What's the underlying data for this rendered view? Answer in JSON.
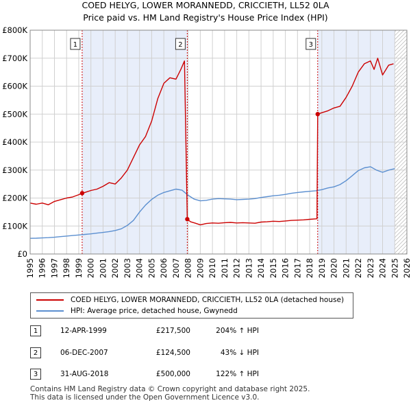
{
  "title_line1": "COED HELYG, LOWER MORANNEDD, CRICCIETH, LL52 0LA",
  "title_line2": "Price paid vs. HM Land Registry's House Price Index (HPI)",
  "legend": {
    "series1": "COED HELYG, LOWER MORANNEDD, CRICCIETH, LL52 0LA (detached house)",
    "series2": "HPI: Average price, detached house, Gwynedd"
  },
  "transactions": [
    {
      "num": "1",
      "date": "12-APR-1999",
      "price": "£217,500",
      "hpi": "204% ↑ HPI"
    },
    {
      "num": "2",
      "date": "06-DEC-2007",
      "price": "£124,500",
      "hpi": "43% ↓ HPI"
    },
    {
      "num": "3",
      "date": "31-AUG-2018",
      "price": "£500,000",
      "hpi": "122% ↑ HPI"
    }
  ],
  "footer_line1": "Contains HM Land Registry data © Crown copyright and database right 2025.",
  "footer_line2": "This data is licensed under the Open Government Licence v3.0.",
  "colors": {
    "price_line": "#cc0000",
    "hpi_line": "#5b8fd0",
    "shade": "#e8eefa",
    "marker_line": "#cc0000"
  },
  "chart_data": {
    "type": "line",
    "title": "COED HELYG, LOWER MORANNEDD, CRICCIETH, LL52 0LA",
    "subtitle": "Price paid vs. HM Land Registry's House Price Index (HPI)",
    "xlabel": "",
    "ylabel": "",
    "xlim": [
      1995,
      2026
    ],
    "ylim": [
      0,
      800000
    ],
    "y_ticks": [
      0,
      100000,
      200000,
      300000,
      400000,
      500000,
      600000,
      700000,
      800000
    ],
    "y_tick_labels": [
      "£0",
      "£100K",
      "£200K",
      "£300K",
      "£400K",
      "£500K",
      "£600K",
      "£700K",
      "£800K"
    ],
    "x_ticks": [
      1995,
      1996,
      1997,
      1998,
      1999,
      2000,
      2001,
      2002,
      2003,
      2004,
      2005,
      2006,
      2007,
      2008,
      2009,
      2010,
      2011,
      2012,
      2013,
      2014,
      2015,
      2016,
      2017,
      2018,
      2019,
      2020,
      2021,
      2022,
      2023,
      2024,
      2025,
      2026
    ],
    "x_tick_labels": [
      "1995",
      "1996",
      "1997",
      "1998",
      "1999",
      "2000",
      "2001",
      "2002",
      "2003",
      "2004",
      "2005",
      "2006",
      "2007",
      "2008",
      "2009",
      "2010",
      "2011",
      "2012",
      "2013",
      "2014",
      "2015",
      "2016",
      "2017",
      "2018",
      "2019",
      "2020",
      "2021",
      "2022",
      "2023",
      "2024",
      "2025",
      "2026"
    ],
    "grid": true,
    "legend_position": "below",
    "shaded_ranges": [
      [
        1999.28,
        2007.93
      ],
      [
        2018.66,
        2025.0
      ]
    ],
    "hatched_after": 2025.0,
    "events": [
      {
        "label": "1",
        "x": 1999.28,
        "y": 217500
      },
      {
        "label": "2",
        "x": 2007.93,
        "y": 124500
      },
      {
        "label": "3",
        "x": 2018.66,
        "y": 500000
      }
    ],
    "series": [
      {
        "name": "COED HELYG, LOWER MORANNEDD, CRICCIETH, LL52 0LA (detached house)",
        "x": [
          1995.0,
          1995.5,
          1996.0,
          1996.5,
          1997.0,
          1997.5,
          1998.0,
          1998.5,
          1999.0,
          1999.28,
          1999.5,
          2000.0,
          2000.5,
          2001.0,
          2001.5,
          2002.0,
          2002.5,
          2003.0,
          2003.5,
          2004.0,
          2004.5,
          2005.0,
          2005.5,
          2006.0,
          2006.5,
          2007.0,
          2007.4,
          2007.7,
          2007.93,
          2008.2,
          2008.6,
          2009.0,
          2009.5,
          2010.0,
          2010.5,
          2011.0,
          2011.5,
          2012.0,
          2012.5,
          2013.0,
          2013.5,
          2014.0,
          2014.5,
          2015.0,
          2015.5,
          2016.0,
          2016.5,
          2017.0,
          2017.5,
          2018.0,
          2018.6,
          2018.66,
          2019.0,
          2019.5,
          2020.0,
          2020.5,
          2021.0,
          2021.5,
          2022.0,
          2022.5,
          2023.0,
          2023.3,
          2023.6,
          2024.0,
          2024.5,
          2024.9
        ],
        "values": [
          182000,
          178000,
          182000,
          176000,
          188000,
          194000,
          200000,
          204000,
          212000,
          217500,
          220000,
          227000,
          232000,
          242000,
          255000,
          250000,
          272000,
          300000,
          345000,
          390000,
          420000,
          475000,
          555000,
          610000,
          630000,
          625000,
          660000,
          690000,
          124500,
          115000,
          110000,
          104000,
          109000,
          111000,
          110000,
          112000,
          113000,
          111000,
          112000,
          111000,
          110000,
          114000,
          115000,
          117000,
          116000,
          118000,
          120000,
          121000,
          122000,
          124000,
          126000,
          500000,
          505000,
          512000,
          522000,
          528000,
          560000,
          600000,
          650000,
          680000,
          690000,
          660000,
          700000,
          640000,
          675000,
          680000
        ]
      },
      {
        "name": "HPI: Average price, detached house, Gwynedd",
        "x": [
          1995.0,
          1995.5,
          1996.0,
          1996.5,
          1997.0,
          1997.5,
          1998.0,
          1998.5,
          1999.0,
          1999.5,
          2000.0,
          2000.5,
          2001.0,
          2001.5,
          2002.0,
          2002.5,
          2003.0,
          2003.5,
          2004.0,
          2004.5,
          2005.0,
          2005.5,
          2006.0,
          2006.5,
          2007.0,
          2007.5,
          2008.0,
          2008.5,
          2009.0,
          2009.5,
          2010.0,
          2010.5,
          2011.0,
          2011.5,
          2012.0,
          2012.5,
          2013.0,
          2013.5,
          2014.0,
          2014.5,
          2015.0,
          2015.5,
          2016.0,
          2016.5,
          2017.0,
          2017.5,
          2018.0,
          2018.5,
          2019.0,
          2019.5,
          2020.0,
          2020.5,
          2021.0,
          2021.5,
          2022.0,
          2022.5,
          2023.0,
          2023.5,
          2024.0,
          2024.5,
          2025.0
        ],
        "values": [
          56000,
          56500,
          57500,
          58500,
          60000,
          62000,
          64000,
          66000,
          68000,
          70000,
          72000,
          74500,
          77000,
          80000,
          84000,
          90000,
          102000,
          120000,
          150000,
          175000,
          195000,
          210000,
          220000,
          226000,
          232000,
          228000,
          210000,
          196000,
          190000,
          192000,
          196000,
          198000,
          197000,
          196000,
          194000,
          195000,
          196000,
          198000,
          202000,
          205000,
          208000,
          210000,
          213000,
          217000,
          220000,
          222000,
          224000,
          226000,
          230000,
          236000,
          240000,
          248000,
          262000,
          280000,
          298000,
          308000,
          312000,
          300000,
          292000,
          300000,
          305000
        ]
      }
    ]
  }
}
